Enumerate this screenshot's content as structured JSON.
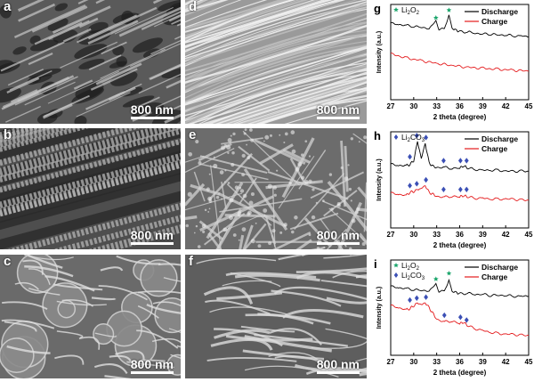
{
  "sem_panels": [
    {
      "letter": "a",
      "scale": "800 nm",
      "texture": "porous-carbon"
    },
    {
      "letter": "b",
      "scale": "800 nm",
      "texture": "rough-fibers"
    },
    {
      "letter": "c",
      "scale": "800 nm",
      "texture": "particles"
    },
    {
      "letter": "d",
      "scale": "800 nm",
      "texture": "clean-fibers"
    },
    {
      "letter": "e",
      "scale": "800 nm",
      "texture": "coated-fibers"
    },
    {
      "letter": "f",
      "scale": "800 nm",
      "texture": "sparse-fibers"
    }
  ],
  "chart_data": [
    {
      "type": "line",
      "letter": "g",
      "xlabel": "2 theta (degree)",
      "ylabel": "Intensity (a.u.)",
      "xlim": [
        27,
        45
      ],
      "xticks": [
        "27",
        "30",
        "33",
        "36",
        "39",
        "42",
        "45"
      ],
      "legend": [
        "Discharge",
        "Charge"
      ],
      "markers_legend": [
        {
          "label": "Li2O2",
          "base": "Li",
          "sub1": "2",
          "mid": "O",
          "sub2": "2",
          "symbol": "star",
          "color": "#1aa56b"
        }
      ],
      "series": [
        {
          "name": "Discharge",
          "color": "#000000",
          "x": [
            27,
            28,
            29,
            30,
            31,
            32,
            32.9,
            33.3,
            34,
            34.6,
            35,
            35.5,
            36,
            37,
            38,
            39,
            40,
            41,
            42,
            43,
            44,
            45
          ],
          "y": [
            0.8,
            0.79,
            0.78,
            0.77,
            0.76,
            0.75,
            0.82,
            0.74,
            0.74,
            0.9,
            0.75,
            0.73,
            0.72,
            0.71,
            0.7,
            0.69,
            0.69,
            0.68,
            0.68,
            0.67,
            0.67,
            0.66
          ]
        },
        {
          "name": "Charge",
          "color": "#e41a1c",
          "x": [
            27,
            29,
            31,
            33,
            35,
            37,
            39,
            41,
            43,
            45
          ],
          "y": [
            0.48,
            0.44,
            0.41,
            0.38,
            0.36,
            0.34,
            0.33,
            0.32,
            0.31,
            0.3
          ]
        }
      ],
      "markers": [
        {
          "x": 32.9,
          "y": 0.86,
          "symbol": "star"
        },
        {
          "x": 34.6,
          "y": 0.94,
          "symbol": "star"
        }
      ]
    },
    {
      "type": "line",
      "letter": "h",
      "xlabel": "2 theta (degree)",
      "ylabel": "Intensity (a.u.)",
      "xlim": [
        27,
        45
      ],
      "xticks": [
        "27",
        "30",
        "33",
        "36",
        "39",
        "42",
        "45"
      ],
      "legend": [
        "Discharge",
        "Charge"
      ],
      "markers_legend": [
        {
          "label": "Li2CO3",
          "base": "Li",
          "sub1": "2",
          "mid": "CO",
          "sub2": "3",
          "symbol": "diamond",
          "color": "#3b4fb5"
        }
      ],
      "series": [
        {
          "name": "Discharge",
          "color": "#000000",
          "x": [
            27,
            28,
            29,
            29.5,
            30,
            30.5,
            31,
            31.5,
            32,
            32.5,
            33,
            34,
            35,
            36,
            36.5,
            37,
            38,
            39,
            40,
            41,
            42,
            43,
            44,
            45
          ],
          "y": [
            0.66,
            0.65,
            0.65,
            0.66,
            0.7,
            0.9,
            0.72,
            0.88,
            0.68,
            0.64,
            0.63,
            0.63,
            0.62,
            0.62,
            0.65,
            0.62,
            0.61,
            0.6,
            0.6,
            0.6,
            0.59,
            0.59,
            0.59,
            0.59
          ]
        },
        {
          "name": "Charge",
          "color": "#e41a1c",
          "x": [
            27,
            28,
            29,
            29.5,
            30,
            30.5,
            31,
            31.5,
            32,
            32.5,
            33,
            34,
            35,
            36,
            36.5,
            37,
            38,
            39,
            40,
            41,
            42,
            43,
            44,
            45
          ],
          "y": [
            0.36,
            0.35,
            0.34,
            0.37,
            0.38,
            0.4,
            0.41,
            0.44,
            0.37,
            0.35,
            0.33,
            0.32,
            0.33,
            0.32,
            0.34,
            0.32,
            0.31,
            0.31,
            0.3,
            0.3,
            0.3,
            0.3,
            0.29,
            0.29
          ]
        }
      ],
      "markers": [
        {
          "x": 29.5,
          "y": 0.74,
          "symbol": "diamond"
        },
        {
          "x": 30.4,
          "y": 0.96,
          "symbol": "diamond"
        },
        {
          "x": 31.6,
          "y": 0.94,
          "symbol": "diamond"
        },
        {
          "x": 33.9,
          "y": 0.7,
          "symbol": "diamond"
        },
        {
          "x": 36.1,
          "y": 0.7,
          "symbol": "diamond"
        },
        {
          "x": 36.9,
          "y": 0.7,
          "symbol": "diamond"
        },
        {
          "x": 29.5,
          "y": 0.44,
          "symbol": "diamond"
        },
        {
          "x": 30.4,
          "y": 0.46,
          "symbol": "diamond"
        },
        {
          "x": 31.6,
          "y": 0.5,
          "symbol": "diamond"
        },
        {
          "x": 33.9,
          "y": 0.4,
          "symbol": "diamond"
        },
        {
          "x": 36.1,
          "y": 0.4,
          "symbol": "diamond"
        },
        {
          "x": 36.9,
          "y": 0.4,
          "symbol": "diamond"
        }
      ]
    },
    {
      "type": "line",
      "letter": "i",
      "xlabel": "2 theta (degree)",
      "ylabel": "Intensity (a.u.)",
      "xlim": [
        27,
        45
      ],
      "xticks": [
        "27",
        "30",
        "33",
        "36",
        "39",
        "42",
        "45"
      ],
      "legend": [
        "Discharge",
        "Charge"
      ],
      "markers_legend": [
        {
          "label": "Li2O2",
          "base": "Li",
          "sub1": "2",
          "mid": "O",
          "sub2": "2",
          "symbol": "star",
          "color": "#1aa56b"
        },
        {
          "label": "Li2CO3",
          "base": "Li",
          "sub1": "2",
          "mid": "CO",
          "sub2": "3",
          "symbol": "diamond",
          "color": "#3b4fb5"
        }
      ],
      "series": [
        {
          "name": "Discharge",
          "color": "#000000",
          "x": [
            27,
            28,
            29,
            30,
            31,
            32,
            32.9,
            33.3,
            34,
            34.6,
            35,
            35.5,
            36,
            37,
            38,
            39,
            40,
            41,
            42,
            43,
            44,
            45
          ],
          "y": [
            0.72,
            0.71,
            0.7,
            0.69,
            0.68,
            0.68,
            0.74,
            0.67,
            0.67,
            0.8,
            0.67,
            0.66,
            0.65,
            0.65,
            0.64,
            0.64,
            0.63,
            0.63,
            0.63,
            0.62,
            0.62,
            0.62
          ]
        },
        {
          "name": "Charge",
          "color": "#e41a1c",
          "x": [
            27,
            28,
            29,
            29.5,
            30,
            30.5,
            31,
            31.5,
            32,
            32.5,
            33,
            34,
            35,
            36,
            36.5,
            37,
            38,
            39,
            40,
            41,
            42,
            43,
            44,
            45
          ],
          "y": [
            0.52,
            0.5,
            0.48,
            0.49,
            0.52,
            0.55,
            0.53,
            0.55,
            0.5,
            0.44,
            0.38,
            0.35,
            0.36,
            0.33,
            0.35,
            0.31,
            0.28,
            0.26,
            0.24,
            0.23,
            0.22,
            0.22,
            0.21,
            0.21
          ]
        }
      ],
      "markers": [
        {
          "x": 32.9,
          "y": 0.8,
          "symbol": "star"
        },
        {
          "x": 34.6,
          "y": 0.86,
          "symbol": "star"
        },
        {
          "x": 29.5,
          "y": 0.58,
          "symbol": "diamond"
        },
        {
          "x": 30.4,
          "y": 0.6,
          "symbol": "diamond"
        },
        {
          "x": 31.6,
          "y": 0.61,
          "symbol": "diamond"
        },
        {
          "x": 34.0,
          "y": 0.42,
          "symbol": "diamond"
        },
        {
          "x": 36.1,
          "y": 0.4,
          "symbol": "diamond"
        },
        {
          "x": 36.9,
          "y": 0.37,
          "symbol": "diamond"
        }
      ]
    }
  ]
}
